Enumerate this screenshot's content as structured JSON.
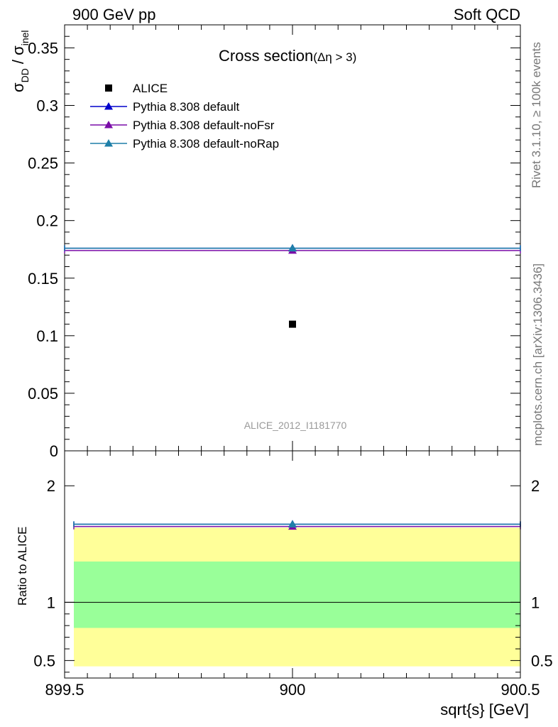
{
  "header": {
    "left": "900 GeV pp",
    "right": "Soft QCD"
  },
  "side_notes": {
    "rivet": "Rivet 3.1.10, ≥ 100k events",
    "mcplots": "mcplots.cern.ch [arXiv:1306.3436]"
  },
  "chart_data": [
    {
      "type": "scatter",
      "title_main": "Cross section",
      "title_sub": "(Δη > 3)",
      "ylabel_parts": [
        "σ",
        "DD",
        " / σ",
        "inel"
      ],
      "xlabel": "sqrt{s} [GeV]",
      "xlim": [
        899.5,
        900.5
      ],
      "ylim": [
        0,
        0.37
      ],
      "x_ticks": [
        899.5,
        900,
        900.5
      ],
      "x_tick_labels": [
        "899.5",
        "900",
        "900.5"
      ],
      "y_ticks": [
        0,
        0.05,
        0.1,
        0.15,
        0.2,
        0.25,
        0.3,
        0.35
      ],
      "y_tick_labels": [
        "0",
        "0.05",
        "0.1",
        "0.15",
        "0.2",
        "0.25",
        "0.3",
        "0.35"
      ],
      "watermark": "ALICE_2012_I1181770",
      "legend_position": "top-left",
      "series": [
        {
          "name": "ALICE",
          "marker": "square",
          "color": "#000000",
          "x": [
            900
          ],
          "y": [
            0.11
          ],
          "xerr": [
            0
          ],
          "is_data": true
        },
        {
          "name": "Pythia 8.308 default",
          "marker": "triangle",
          "color": "#0000cc",
          "x": [
            900
          ],
          "y": [
            0.176
          ],
          "xerr": [
            0.5
          ]
        },
        {
          "name": "Pythia 8.308 default-noFsr",
          "marker": "triangle",
          "color": "#7a0ca8",
          "x": [
            900
          ],
          "y": [
            0.174
          ],
          "xerr": [
            0.5
          ]
        },
        {
          "name": "Pythia 8.308 default-noRap",
          "marker": "triangle",
          "color": "#1f7fa8",
          "x": [
            900
          ],
          "y": [
            0.176
          ],
          "xerr": [
            0.5
          ]
        }
      ]
    },
    {
      "type": "scatter",
      "ylabel": "Ratio to ALICE",
      "xlim": [
        899.5,
        900.5
      ],
      "ylim": [
        0.35,
        2.3
      ],
      "y_ticks": [
        0.5,
        1,
        2
      ],
      "y_tick_labels": [
        "0.5",
        "1",
        "2"
      ],
      "reference_line": 1,
      "bands": [
        {
          "label": "outer",
          "low": 0.45,
          "high": 1.64,
          "color": "#ffff99"
        },
        {
          "label": "inner",
          "low": 0.78,
          "high": 1.35,
          "color": "#99ff99"
        }
      ],
      "series": [
        {
          "name": "Pythia 8.308 default",
          "color": "#0000cc",
          "x": [
            900
          ],
          "y": [
            1.67
          ],
          "xerr": [
            0.5
          ]
        },
        {
          "name": "Pythia 8.308 default-noFsr",
          "color": "#7a0ca8",
          "x": [
            900
          ],
          "y": [
            1.65
          ],
          "xerr": [
            0.5
          ]
        },
        {
          "name": "Pythia 8.308 default-noRap",
          "color": "#1f7fa8",
          "x": [
            900
          ],
          "y": [
            1.67
          ],
          "xerr": [
            0.5
          ]
        }
      ]
    }
  ]
}
